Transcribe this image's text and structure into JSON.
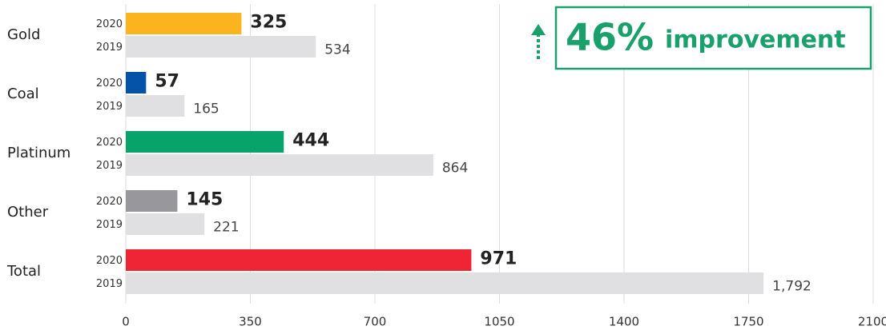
{
  "chart_data": {
    "type": "bar",
    "categories": [
      "Gold",
      "Coal",
      "Platinum",
      "Other",
      "Total"
    ],
    "series": [
      {
        "name": "2020",
        "colors": [
          "#fbb41e",
          "#0553a8",
          "#06a36b",
          "#98989c",
          "#ef2535"
        ],
        "values": [
          325,
          57,
          444,
          145,
          971
        ]
      },
      {
        "name": "2019",
        "color": "#e0e0e2",
        "values": [
          534,
          165,
          864,
          221,
          1792
        ],
        "value_labels": [
          "534",
          "165",
          "864",
          "221",
          "1,792"
        ]
      }
    ],
    "xlim": [
      0,
      2100
    ],
    "xticks": [
      0,
      350,
      700,
      1050,
      1400,
      1750,
      2100
    ],
    "grid": true,
    "annotations": [
      "46%",
      "improvement"
    ]
  }
}
